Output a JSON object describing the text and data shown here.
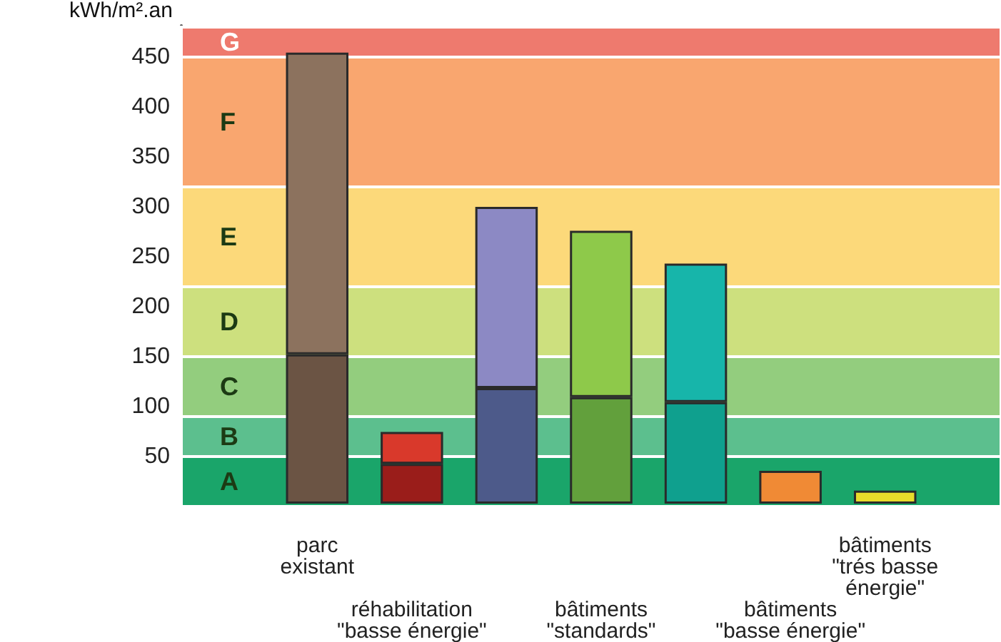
{
  "chart_data": {
    "type": "bar",
    "stacked": true,
    "ylabel": "kWh/m².an",
    "categories": [
      "parc existant",
      "réhabilitation \"basse énergie\"",
      null,
      "bâtiments \"standards\"",
      null,
      "bâtiments \"basse énergie\"",
      "bâtiments \"trés basse énergie\""
    ],
    "series": [
      {
        "colors": [
          "#6b5444",
          "#9a1d1a",
          "#4d5a8a",
          "#62a03c",
          "#0fa08e",
          "#f08a35",
          "#e8dc2a"
        ],
        "values": [
          150,
          40,
          116,
          107,
          102,
          33,
          13
        ]
      },
      {
        "colors": [
          "#8c725e",
          "#d9392b",
          "#8c89c4",
          "#8ec94a",
          "#17b5aa",
          null,
          null
        ],
        "values": [
          303,
          32,
          182,
          167,
          139,
          null,
          null
        ]
      }
    ],
    "ylim": [
      0,
      480
    ],
    "yticks": [
      50,
      100,
      150,
      200,
      250,
      300,
      350,
      400,
      450
    ],
    "bands": [
      {
        "axis": "y",
        "from": 0,
        "to": 50,
        "label": "A",
        "color": "#1aa56a"
      },
      {
        "axis": "y",
        "from": 50,
        "to": 90,
        "label": "B",
        "color": "#5cbf8e"
      },
      {
        "axis": "y",
        "from": 90,
        "to": 150,
        "label": "C",
        "color": "#93cd7e"
      },
      {
        "axis": "y",
        "from": 150,
        "to": 220,
        "label": "D",
        "color": "#cde07e"
      },
      {
        "axis": "y",
        "from": 220,
        "to": 320,
        "label": "E",
        "color": "#fcd97a"
      },
      {
        "axis": "y",
        "from": 320,
        "to": 450,
        "label": "F",
        "color": "#f9a66f"
      },
      {
        "axis": "y",
        "from": 450,
        "to": 480,
        "label": "G",
        "color": "#ee7a6e"
      }
    ]
  }
}
